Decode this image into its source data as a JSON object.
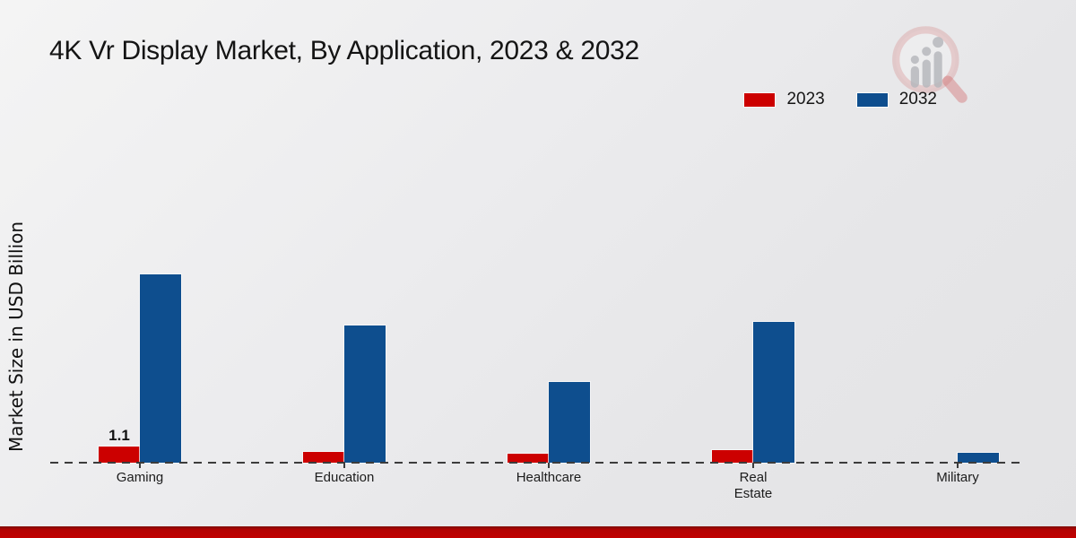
{
  "chart_data": {
    "type": "bar",
    "title": "4K Vr Display Market, By Application, 2023 & 2032",
    "ylabel": "Market Size in USD Billion",
    "xlabel": "",
    "categories": [
      "Gaming",
      "Education",
      "Healthcare",
      "Real\nEstate",
      "Military"
    ],
    "series": [
      {
        "name": "2023",
        "color": "#cc0000",
        "values": [
          1.1,
          0.75,
          0.6,
          0.85,
          0
        ]
      },
      {
        "name": "2032",
        "color": "#0e4e8e",
        "values": [
          12.8,
          9.3,
          5.5,
          9.6,
          0.65
        ]
      }
    ],
    "ylim": [
      0,
      14
    ],
    "grid": false,
    "axis_style": "dashed-baseline-only",
    "legend_position": "top-right",
    "bar_labels": [
      {
        "category": "Gaming",
        "series": "2023",
        "text": "1.1"
      }
    ]
  },
  "colors": {
    "bar_2023": "#cc0000",
    "bar_2032": "#0e4e8e",
    "footer_bar": "#c00000",
    "baseline": "#3c3c3c",
    "background": "#ececee"
  },
  "watermark": {
    "name": "market-research-logo"
  }
}
